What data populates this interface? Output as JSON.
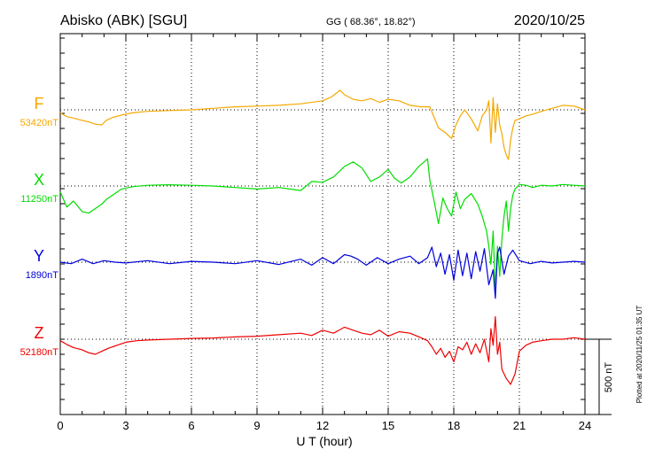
{
  "header": {
    "station": "Abisko (ABK)  [SGU]",
    "coords": "GG ( 68.36°,  18.82°)",
    "date": "2020/10/25"
  },
  "footer": {
    "xlabel": "U T (hour)",
    "plotted": "Plotted at 2020/11/25 01:35 UT"
  },
  "scale": {
    "label": "500 nT",
    "value_nT": 500
  },
  "chart_data": {
    "type": "line",
    "xlim": [
      0,
      24
    ],
    "xticks": [
      0,
      3,
      6,
      9,
      12,
      15,
      18,
      21,
      24
    ],
    "xtick_labels": [
      "0",
      "3",
      "6",
      "9",
      "12",
      "15",
      "18",
      "21",
      "24"
    ],
    "grid": true,
    "series": [
      {
        "name": "F",
        "baseline_label": "53420nT",
        "baseline_nT": 53420,
        "color": "#f5a800",
        "x": [
          0,
          0.3,
          0.6,
          1,
          1.3,
          1.6,
          1.9,
          2.1,
          2.4,
          2.8,
          3.3,
          4,
          5,
          6,
          7,
          8,
          9,
          10,
          11,
          12,
          12.4,
          12.8,
          13,
          13.4,
          13.8,
          14.2,
          14.6,
          15,
          15.5,
          16,
          16.5,
          16.9,
          17.1,
          17.3,
          17.6,
          17.9,
          18.1,
          18.3,
          18.5,
          18.8,
          19.1,
          19.3,
          19.5,
          19.6,
          19.7,
          19.8,
          19.9,
          20,
          20.1,
          20.2,
          20.3,
          20.4,
          20.5,
          20.6,
          20.7,
          20.8,
          21,
          21.3,
          21.6,
          22,
          22.5,
          23,
          23.5,
          24
        ],
        "y": [
          -20,
          -45,
          -55,
          -70,
          -80,
          -95,
          -100,
          -70,
          -50,
          -35,
          -20,
          -10,
          -5,
          0,
          10,
          20,
          25,
          30,
          40,
          60,
          85,
          130,
          100,
          70,
          60,
          75,
          50,
          70,
          60,
          30,
          20,
          20,
          -50,
          -120,
          -150,
          -190,
          -100,
          -40,
          0,
          -60,
          -140,
          -40,
          0,
          60,
          -220,
          80,
          -150,
          40,
          -100,
          -160,
          -250,
          -300,
          -330,
          -200,
          -120,
          -70,
          -60,
          -40,
          -30,
          -10,
          10,
          30,
          25,
          0
        ]
      },
      {
        "name": "X",
        "baseline_label": "11250nT",
        "baseline_nT": 11250,
        "color": "#00dd00",
        "x": [
          0,
          0.3,
          0.6,
          1,
          1.3,
          1.6,
          1.9,
          2.1,
          2.4,
          2.8,
          3.3,
          4,
          5,
          6,
          7,
          8,
          9,
          10,
          11,
          11.5,
          12,
          12.5,
          13,
          13.4,
          13.8,
          14.2,
          14.6,
          15,
          15.3,
          15.6,
          16,
          16.4,
          16.8,
          16.9,
          17.1,
          17.3,
          17.5,
          17.7,
          17.9,
          18.1,
          18.3,
          18.5,
          18.8,
          19.1,
          19.3,
          19.5,
          19.6,
          19.7,
          19.8,
          19.9,
          20,
          20.1,
          20.2,
          20.3,
          20.4,
          20.5,
          20.6,
          20.7,
          20.8,
          21,
          21.3,
          21.6,
          22,
          22.5,
          23,
          23.5,
          24
        ],
        "y": [
          -40,
          -140,
          -100,
          -170,
          -180,
          -150,
          -120,
          -90,
          -60,
          -20,
          -5,
          5,
          8,
          5,
          0,
          -10,
          -20,
          -10,
          -30,
          30,
          25,
          60,
          130,
          160,
          120,
          30,
          60,
          110,
          50,
          20,
          60,
          130,
          180,
          40,
          -100,
          -250,
          -80,
          -150,
          -200,
          -40,
          -150,
          -90,
          -50,
          -120,
          -200,
          -300,
          -400,
          -520,
          -300,
          -700,
          -400,
          -600,
          -350,
          -200,
          -100,
          -300,
          -150,
          -60,
          -20,
          10,
          5,
          -10,
          5,
          0,
          10,
          5,
          0
        ]
      },
      {
        "name": "Y",
        "baseline_label": "1890nT",
        "baseline_nT": 1890,
        "color": "#0000dd",
        "x": [
          0,
          0.5,
          1,
          1.5,
          2,
          2.5,
          3,
          4,
          5,
          6,
          7,
          8,
          9,
          10,
          11,
          11.5,
          12,
          12.5,
          13,
          13.3,
          13.6,
          14,
          14.5,
          15,
          15.5,
          16,
          16.4,
          16.8,
          17,
          17.2,
          17.4,
          17.6,
          17.8,
          18,
          18.2,
          18.4,
          18.6,
          18.8,
          19,
          19.2,
          19.4,
          19.6,
          19.8,
          19.9,
          20,
          20.1,
          20.3,
          20.5,
          20.7,
          21,
          21.5,
          22,
          22.5,
          23,
          23.5,
          24
        ],
        "y": [
          0,
          -10,
          20,
          -10,
          10,
          0,
          -5,
          10,
          -10,
          5,
          0,
          -10,
          10,
          -15,
          20,
          -20,
          30,
          -10,
          50,
          40,
          20,
          -20,
          30,
          -10,
          20,
          40,
          -10,
          30,
          100,
          -30,
          60,
          -80,
          50,
          -120,
          80,
          -90,
          60,
          -110,
          70,
          -60,
          90,
          -150,
          -50,
          -240,
          60,
          100,
          -80,
          40,
          80,
          10,
          -10,
          5,
          -5,
          0,
          5,
          0
        ]
      },
      {
        "name": "Z",
        "baseline_label": "52180nT",
        "baseline_nT": 52180,
        "color": "#ee0000",
        "x": [
          0,
          0.3,
          0.6,
          1,
          1.3,
          1.6,
          1.9,
          2.2,
          2.6,
          3,
          3.5,
          4,
          5,
          6,
          7,
          8,
          9,
          10,
          11,
          11.5,
          12,
          12.5,
          13,
          13.4,
          13.8,
          14.2,
          14.6,
          15,
          15.5,
          16,
          16.5,
          16.8,
          17,
          17.2,
          17.4,
          17.6,
          17.8,
          18,
          18.2,
          18.4,
          18.6,
          18.8,
          19,
          19.2,
          19.4,
          19.6,
          19.7,
          19.8,
          19.9,
          20,
          20.1,
          20.2,
          20.4,
          20.6,
          20.8,
          21,
          21.3,
          21.6,
          22,
          22.5,
          23,
          23.5,
          24
        ],
        "y": [
          -10,
          -35,
          -55,
          -70,
          -90,
          -100,
          -80,
          -60,
          -40,
          -20,
          -10,
          -5,
          0,
          5,
          8,
          15,
          20,
          30,
          40,
          25,
          60,
          40,
          80,
          60,
          40,
          30,
          60,
          20,
          50,
          40,
          10,
          -10,
          -50,
          -100,
          -60,
          -120,
          -80,
          -150,
          -50,
          -70,
          -20,
          -100,
          -30,
          -90,
          0,
          -150,
          70,
          -40,
          150,
          -100,
          -20,
          -200,
          -260,
          -300,
          -230,
          -80,
          -40,
          -20,
          -10,
          0,
          0,
          10,
          0
        ]
      }
    ]
  }
}
